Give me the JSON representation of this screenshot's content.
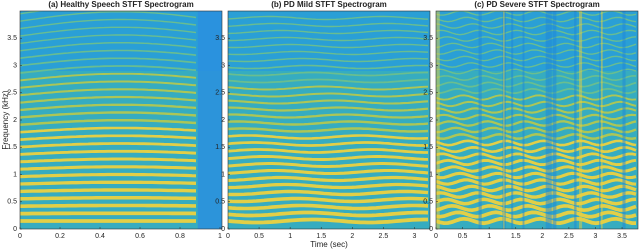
{
  "chart_data": [
    {
      "type": "spectrogram",
      "title": "(a) Healthy Speech STFT Spectrogram",
      "ylabel": "Frequency (kHz)",
      "xlim": [
        0,
        1.01
      ],
      "xticks": [
        0,
        0.2,
        0.4,
        0.6,
        0.8,
        1
      ],
      "ylim": [
        0,
        4
      ],
      "yticks": [
        0,
        0.5,
        1,
        1.5,
        2,
        2.5,
        3,
        3.5
      ]
    },
    {
      "type": "spectrogram",
      "title": "(b) PD Mild STFT Spectrogram",
      "xlabel": "Time (sec)",
      "xlim": [
        0,
        3.25
      ],
      "xticks": [
        0,
        0.5,
        1,
        1.5,
        2,
        2.5,
        3
      ],
      "ylim": [
        0,
        4
      ],
      "yticks": [
        0,
        0.5,
        1,
        1.5,
        2,
        2.5,
        3,
        3.5
      ]
    },
    {
      "type": "spectrogram",
      "title": "(c) PD Severe STFT Spectrogram",
      "xlim": [
        0,
        3.8
      ],
      "xticks": [
        0,
        0.5,
        1,
        1.5,
        2,
        2.5,
        3,
        3.5
      ],
      "ylim": [
        0,
        4
      ],
      "yticks": [
        0,
        0.5,
        1,
        1.5,
        2,
        2.5,
        3,
        3.5
      ]
    }
  ]
}
